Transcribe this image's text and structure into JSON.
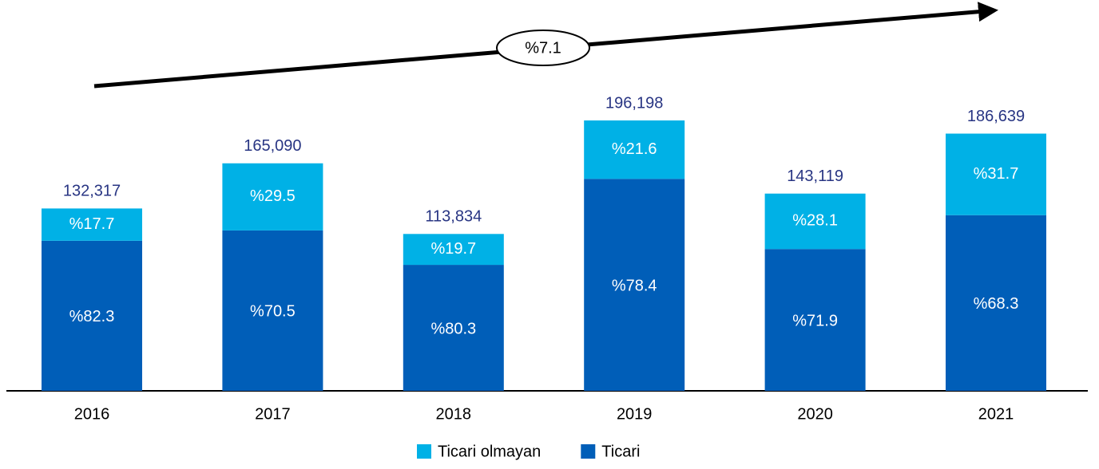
{
  "chart_data": {
    "type": "bar",
    "stacked": true,
    "categories": [
      "2016",
      "2017",
      "2018",
      "2019",
      "2020",
      "2021"
    ],
    "series": [
      {
        "name": "Ticari",
        "color": "#005eb8",
        "values": [
          82.3,
          70.5,
          80.3,
          78.4,
          71.9,
          68.3
        ],
        "value_labels": [
          "%82.3",
          "%70.5",
          "%80.3",
          "%78.4",
          "%71.9",
          "%68.3"
        ]
      },
      {
        "name": "Ticari olmayan",
        "color": "#00b1e6",
        "values": [
          17.7,
          29.5,
          19.7,
          21.6,
          28.1,
          31.7
        ],
        "value_labels": [
          "%17.7",
          "%29.5",
          "%19.7",
          "%21.6",
          "%28.1",
          "%31.7"
        ]
      }
    ],
    "totals": {
      "values": [
        132317,
        165090,
        113834,
        196198,
        143119,
        186639
      ],
      "value_labels": [
        "132,317",
        "165,090",
        "113,834",
        "196,198",
        "143,119",
        "186,639"
      ],
      "color": "#283583"
    },
    "annotation": "%7.1",
    "legend": "bottom"
  }
}
